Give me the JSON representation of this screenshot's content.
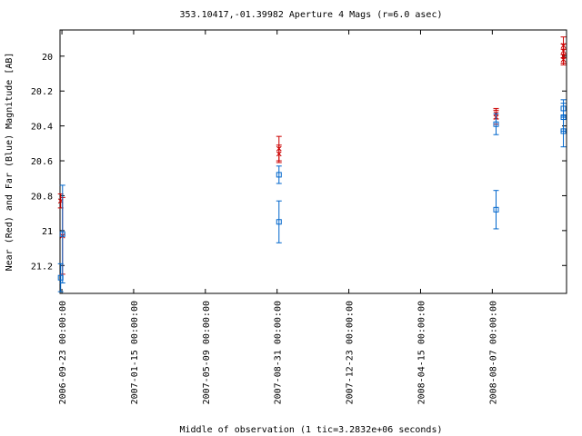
{
  "chart_data": {
    "type": "scatter",
    "title": "353.10417,-01.39982   Aperture 4 Mags (r=6.0 asec)",
    "xlabel": "Middle of observation (1 tic=3.2832e+06 seconds)",
    "ylabel": "Near (Red) and Far (Blue) Magnitude [AB]",
    "y_inverted": true,
    "xlim": [
      "2006-09-20",
      "2008-12-03"
    ],
    "ylim": [
      21.36,
      19.85
    ],
    "x_ticks": [
      "2006-09-23 00:00:00",
      "2007-01-15 00:00:00",
      "2007-05-09 00:00:00",
      "2007-08-31 00:00:00",
      "2007-12-23 00:00:00",
      "2008-04-15 00:00:00",
      "2008-08-07 00:00:00"
    ],
    "y_ticks": [
      "20",
      "20.2",
      "20.4",
      "20.6",
      "20.8",
      "21",
      "21.2"
    ],
    "grid": false,
    "series": [
      {
        "name": "Near",
        "color": "#cc0000",
        "marker": "x",
        "points": [
          {
            "x": "2006-09-21",
            "y": 20.83,
            "err": 0.04
          },
          {
            "x": "2006-09-24",
            "y": 21.03,
            "err": 0.22
          },
          {
            "x": "2007-09-03",
            "y": 20.53,
            "err": 0.07
          },
          {
            "x": "2007-09-03",
            "y": 20.56,
            "err": 0.05
          },
          {
            "x": "2008-08-13",
            "y": 20.33,
            "err": 0.03
          },
          {
            "x": "2008-08-13",
            "y": 20.35,
            "err": 0.04
          },
          {
            "x": "2008-11-28",
            "y": 19.97,
            "err": 0.04
          },
          {
            "x": "2008-11-28",
            "y": 20.0,
            "err": 0.04
          },
          {
            "x": "2008-11-28",
            "y": 20.02,
            "err": 0.03
          },
          {
            "x": "2008-11-28",
            "y": 19.94,
            "err": 0.05
          }
        ]
      },
      {
        "name": "Far",
        "color": "#0066cc",
        "marker": "square",
        "points": [
          {
            "x": "2006-09-21",
            "y": 21.27,
            "err": 0.08
          },
          {
            "x": "2006-09-24",
            "y": 21.02,
            "err": 0.28
          },
          {
            "x": "2007-09-03",
            "y": 20.68,
            "err": 0.05
          },
          {
            "x": "2007-09-03",
            "y": 20.95,
            "err": 0.12
          },
          {
            "x": "2008-08-13",
            "y": 20.39,
            "err": 0.06
          },
          {
            "x": "2008-08-13",
            "y": 20.88,
            "err": 0.11
          },
          {
            "x": "2008-11-28",
            "y": 20.3,
            "err": 0.05
          },
          {
            "x": "2008-11-28",
            "y": 20.35,
            "err": 0.08
          },
          {
            "x": "2008-11-28",
            "y": 20.43,
            "err": 0.09
          }
        ]
      }
    ]
  }
}
